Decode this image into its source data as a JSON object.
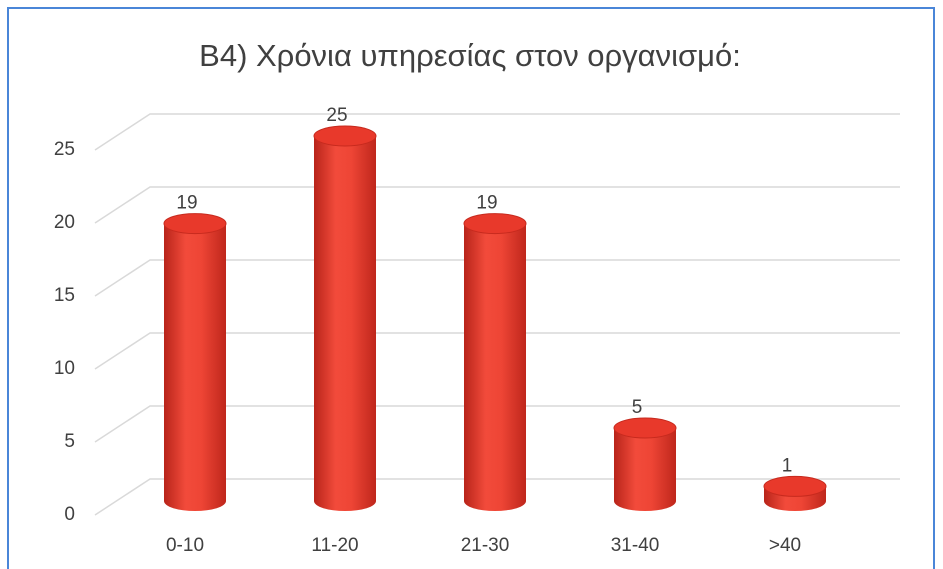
{
  "chart_data": {
    "type": "bar3d",
    "title": "B4) Χρόνια υπηρεσίας στον οργανισμό:",
    "categories": [
      "0-10",
      "11-20",
      "21-30",
      "31-40",
      ">40"
    ],
    "values": [
      19,
      25,
      19,
      5,
      1
    ],
    "color": "#e8392b",
    "ylim": [
      0,
      25
    ],
    "yticks": [
      0,
      5,
      10,
      15,
      20,
      25
    ],
    "grid": true
  }
}
